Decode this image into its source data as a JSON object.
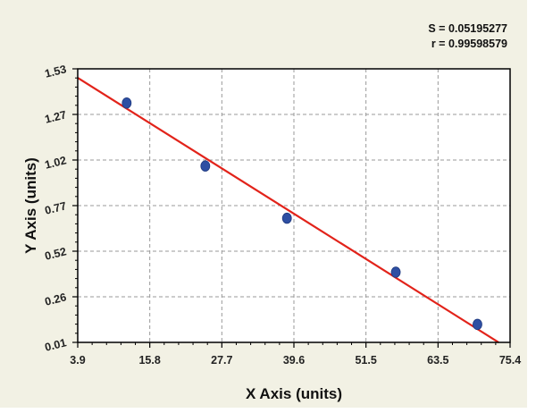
{
  "chart_data": {
    "type": "scatter",
    "xlabel": "X Axis (units)",
    "ylabel": "Y Axis (units)",
    "xlim": [
      3.9,
      75.4
    ],
    "ylim": [
      0.01,
      1.53
    ],
    "x_ticks": [
      "3.9",
      "15.8",
      "27.7",
      "39.6",
      "51.5",
      "63.5",
      "75.4"
    ],
    "y_ticks": [
      "0.01",
      "0.26",
      "0.52",
      "0.77",
      "1.02",
      "1.27",
      "1.53"
    ],
    "grid": true,
    "points": [
      {
        "x": 12.0,
        "y": 1.34
      },
      {
        "x": 25.0,
        "y": 0.99
      },
      {
        "x": 38.5,
        "y": 0.7
      },
      {
        "x": 56.5,
        "y": 0.4
      },
      {
        "x": 70.0,
        "y": 0.11
      }
    ],
    "fit_line": {
      "x": [
        3.9,
        73.5
      ],
      "y": [
        1.48,
        0.01
      ]
    },
    "stats": {
      "s_label": "S = 0.05195277",
      "r_label": "r = 0.99598579"
    },
    "colors": {
      "background": "#f2f1e4",
      "plot_area": "#ffffff",
      "points": "#2e4fa3",
      "fit_line": "#e2231a",
      "grid": "#9a9a9a"
    }
  }
}
